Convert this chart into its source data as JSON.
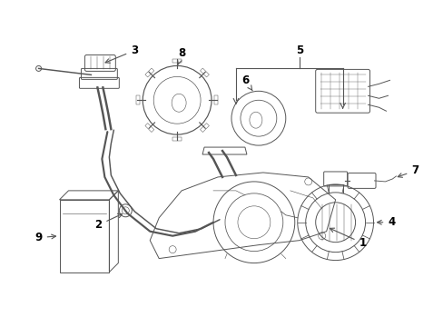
{
  "background_color": "#ffffff",
  "line_color": "#555555",
  "label_color": "#000000",
  "fig_width": 4.89,
  "fig_height": 3.6,
  "dpi": 100
}
